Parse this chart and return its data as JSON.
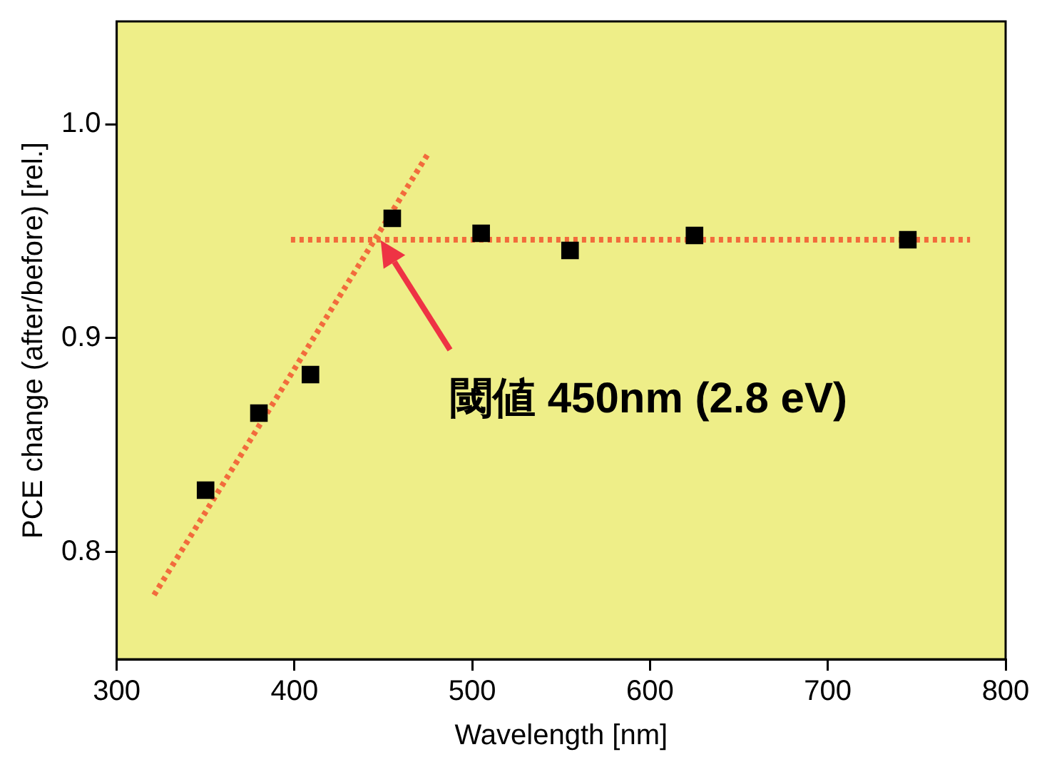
{
  "chart_data": {
    "type": "scatter",
    "xlabel": "Wavelength [nm]",
    "ylabel": "PCE change (after/before) [rel.]",
    "xlim": [
      300,
      800
    ],
    "xticks": [
      300,
      400,
      500,
      600,
      700,
      800
    ],
    "ylim": [
      0.75,
      1.048
    ],
    "yticks": [
      {
        "value": 0.8,
        "label": "0.8"
      },
      {
        "value": 0.9,
        "label": "0.9"
      },
      {
        "value": 1,
        "label": "1.0"
      }
    ],
    "grid": false,
    "legend": false,
    "series": [
      {
        "type": "scatter",
        "color": "#000000",
        "marker": "square",
        "x": [
          350,
          380,
          409,
          455,
          505,
          555,
          625,
          745
        ],
        "values": [
          0.829,
          0.865,
          0.883,
          0.956,
          0.949,
          0.941,
          0.948,
          0.946
        ]
      },
      {
        "type": "line",
        "color": "#f26b3c",
        "marker": "none",
        "line_style": "dotted",
        "x": [
          321,
          475
        ],
        "values": [
          0.78,
          0.986
        ]
      },
      {
        "type": "line",
        "color": "#f26b3c",
        "marker": "none",
        "line_style": "dotted",
        "x": [
          398,
          780
        ],
        "values": [
          0.946,
          0.946
        ]
      }
    ],
    "annotations": [
      "閾値 450nm (2.8 eV)"
    ]
  }
}
